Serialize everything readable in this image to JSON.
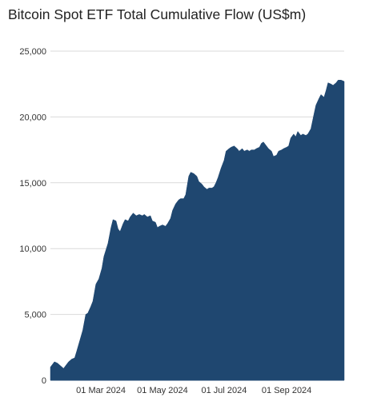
{
  "chart_data": {
    "type": "area",
    "title": "Bitcoin Spot ETF Total Cumulative Flow (US$m)",
    "xlabel": "",
    "ylabel": "",
    "ylim": [
      0,
      25000
    ],
    "y_ticks": [
      0,
      5000,
      10000,
      15000,
      20000,
      25000
    ],
    "y_tick_labels": [
      "0",
      "5,000",
      "10,000",
      "15,000",
      "20,000",
      "25,000"
    ],
    "x_range": [
      "2024-01-11",
      "2024-10-28"
    ],
    "x_ticks": [
      "2024-03-01",
      "2024-05-01",
      "2024-07-01",
      "2024-09-01"
    ],
    "x_tick_labels": [
      "01 Mar 2024",
      "01 May 2024",
      "01 Jul 2024",
      "01 Sep 2024"
    ],
    "grid": "horizontal",
    "colors": {
      "area": "#1f4770",
      "grid": "#d9d9d9"
    },
    "series": [
      {
        "x": [
          "2024-01-11",
          "2024-01-15",
          "2024-01-18",
          "2024-01-21",
          "2024-01-24",
          "2024-01-26",
          "2024-01-29",
          "2024-02-01",
          "2024-02-04",
          "2024-02-06",
          "2024-02-09",
          "2024-02-12",
          "2024-02-15",
          "2024-02-17",
          "2024-02-20",
          "2024-02-22",
          "2024-02-25",
          "2024-02-28",
          "2024-03-02",
          "2024-03-04",
          "2024-03-08",
          "2024-03-11",
          "2024-03-13",
          "2024-03-16",
          "2024-03-18",
          "2024-03-20",
          "2024-03-23",
          "2024-03-25",
          "2024-03-28",
          "2024-03-30",
          "2024-04-02",
          "2024-04-05",
          "2024-04-08",
          "2024-04-11",
          "2024-04-13",
          "2024-04-16",
          "2024-04-19",
          "2024-04-21",
          "2024-04-24",
          "2024-04-26",
          "2024-04-28",
          "2024-05-01",
          "2024-05-04",
          "2024-05-06",
          "2024-05-09",
          "2024-05-11",
          "2024-05-14",
          "2024-05-17",
          "2024-05-19",
          "2024-05-22",
          "2024-05-24",
          "2024-05-27",
          "2024-05-29",
          "2024-06-01",
          "2024-06-04",
          "2024-06-06",
          "2024-06-09",
          "2024-06-11",
          "2024-06-14",
          "2024-06-16",
          "2024-06-19",
          "2024-06-21",
          "2024-06-23",
          "2024-06-25",
          "2024-06-28",
          "2024-07-01",
          "2024-07-03",
          "2024-07-06",
          "2024-07-08",
          "2024-07-11",
          "2024-07-14",
          "2024-07-16",
          "2024-07-19",
          "2024-07-21",
          "2024-07-24",
          "2024-07-26",
          "2024-07-28",
          "2024-07-31",
          "2024-08-02",
          "2024-08-05",
          "2024-08-07",
          "2024-08-09",
          "2024-08-12",
          "2024-08-14",
          "2024-08-17",
          "2024-08-19",
          "2024-08-22",
          "2024-08-24",
          "2024-08-27",
          "2024-08-29",
          "2024-09-01",
          "2024-09-03",
          "2024-09-05",
          "2024-09-08",
          "2024-09-10",
          "2024-09-12",
          "2024-09-15",
          "2024-09-17",
          "2024-09-20",
          "2024-09-22",
          "2024-09-25",
          "2024-09-28",
          "2024-09-30",
          "2024-10-03",
          "2024-10-05",
          "2024-10-08",
          "2024-10-10",
          "2024-10-12",
          "2024-10-15",
          "2024-10-17",
          "2024-10-20",
          "2024-10-22",
          "2024-10-25",
          "2024-10-28"
        ],
        "values": [
          1000,
          1400,
          1300,
          1100,
          900,
          1100,
          1400,
          1600,
          1700,
          2200,
          3000,
          3800,
          5000,
          5100,
          5600,
          6000,
          7300,
          7700,
          8500,
          9400,
          10400,
          11600,
          12200,
          12100,
          11500,
          11300,
          11900,
          12200,
          12100,
          12400,
          12700,
          12500,
          12600,
          12500,
          12600,
          12400,
          12500,
          12100,
          12000,
          11600,
          11700,
          11800,
          11700,
          11900,
          12300,
          12900,
          13400,
          13700,
          13800,
          13800,
          14100,
          15500,
          15800,
          15700,
          15500,
          15100,
          14900,
          14700,
          14500,
          14600,
          14600,
          14700,
          15000,
          15400,
          16100,
          16700,
          17400,
          17600,
          17700,
          17800,
          17600,
          17400,
          17600,
          17400,
          17500,
          17400,
          17500,
          17500,
          17600,
          17700,
          18000,
          18100,
          17800,
          17600,
          17400,
          17000,
          17100,
          17400,
          17500,
          17600,
          17700,
          17800,
          18400,
          18700,
          18500,
          18900,
          18600,
          18700,
          18600,
          18700,
          19100,
          20200,
          20900,
          21400,
          21700,
          21500,
          22000,
          22600,
          22500,
          22400,
          22600,
          22800,
          22800,
          22700
        ]
      }
    ]
  }
}
